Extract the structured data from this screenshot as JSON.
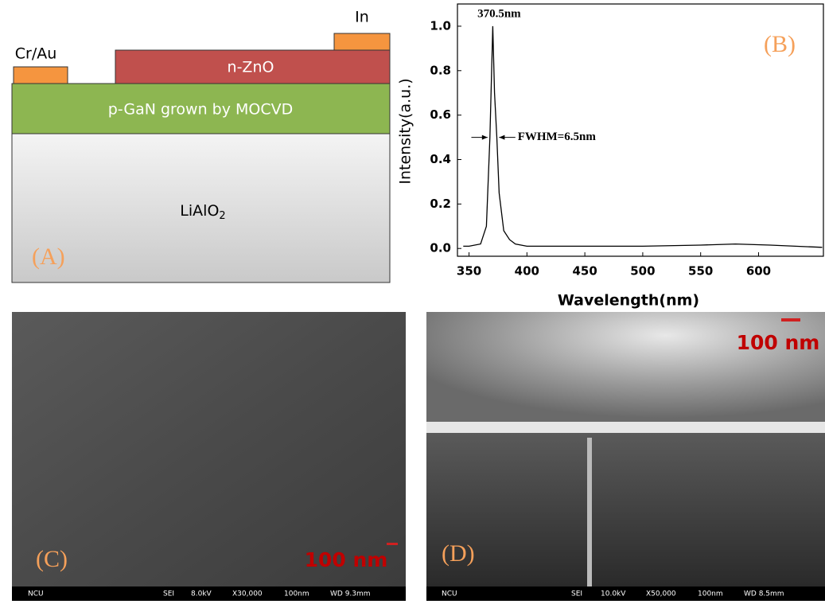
{
  "diagram": {
    "panel_label": "(A)",
    "layers": {
      "contact_left": "Cr/Au",
      "contact_right": "In",
      "top": "n-ZnO",
      "middle": "p-GaN grown by MOCVD",
      "substrate": {
        "text": "LiAlO",
        "subscript": "2"
      }
    }
  },
  "chart_data": {
    "type": "line",
    "panel_label": "(B)",
    "x_label": "Wavelength(nm)",
    "y_label": "Intensity(a.u.)",
    "annotations": {
      "peak": "370.5nm",
      "fwhm": "FWHM=6.5nm"
    },
    "x": [
      345,
      350,
      360,
      365,
      368,
      370.5,
      372,
      374,
      376,
      380,
      385,
      390,
      400,
      450,
      500,
      550,
      580,
      610,
      655
    ],
    "values": [
      0.01,
      0.01,
      0.02,
      0.1,
      0.5,
      1.0,
      0.7,
      0.5,
      0.25,
      0.08,
      0.04,
      0.02,
      0.01,
      0.01,
      0.01,
      0.015,
      0.02,
      0.015,
      0.005
    ],
    "color": "#000000",
    "xlim": [
      340,
      656
    ],
    "ylim": [
      -0.035,
      1.1
    ],
    "xticks": [
      350,
      400,
      450,
      500,
      550,
      600
    ],
    "yticks": [
      {
        "value": 0,
        "label": "0.0"
      },
      {
        "value": 0.2,
        "label": "0.2"
      },
      {
        "value": 0.4,
        "label": "0.4"
      },
      {
        "value": 0.6,
        "label": "0.6"
      },
      {
        "value": 0.8,
        "label": "0.8"
      },
      {
        "value": 1,
        "label": "1.0"
      }
    ]
  },
  "sem_c": {
    "panel_label": "(C)",
    "scale": "100 nm",
    "info": [
      "NCU",
      "SEI",
      "8.0kV",
      "X30,000",
      "100nm",
      "WD 9.3mm"
    ]
  },
  "sem_d": {
    "panel_label": "(D)",
    "scale": "100 nm",
    "info": [
      "NCU",
      "SEI",
      "10.0kV",
      "X50,000",
      "100nm",
      "WD 8.5mm"
    ]
  }
}
